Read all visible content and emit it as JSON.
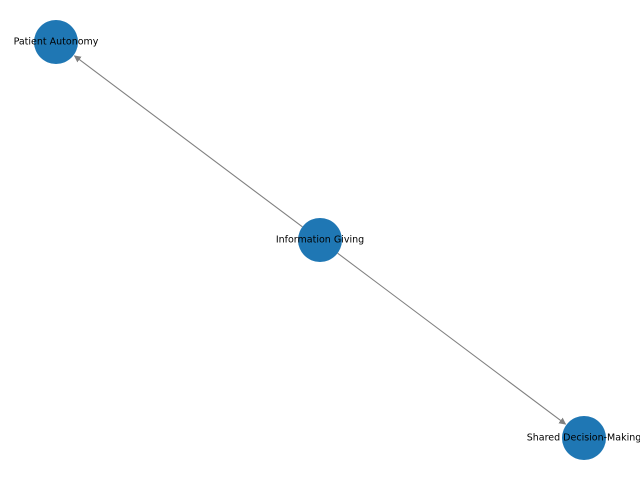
{
  "diagram": {
    "type": "directed-graph",
    "colors": {
      "node": "#1f77b4",
      "edge": "#808080",
      "label": "#000000",
      "background": "#ffffff"
    },
    "nodes": [
      {
        "id": "info",
        "label": "Information Giving"
      },
      {
        "id": "autonomy",
        "label": "Patient Autonomy"
      },
      {
        "id": "sdm",
        "label": "Shared Decision-Making"
      }
    ],
    "edges": [
      {
        "from": "info",
        "to": "autonomy"
      },
      {
        "from": "info",
        "to": "sdm"
      }
    ]
  }
}
